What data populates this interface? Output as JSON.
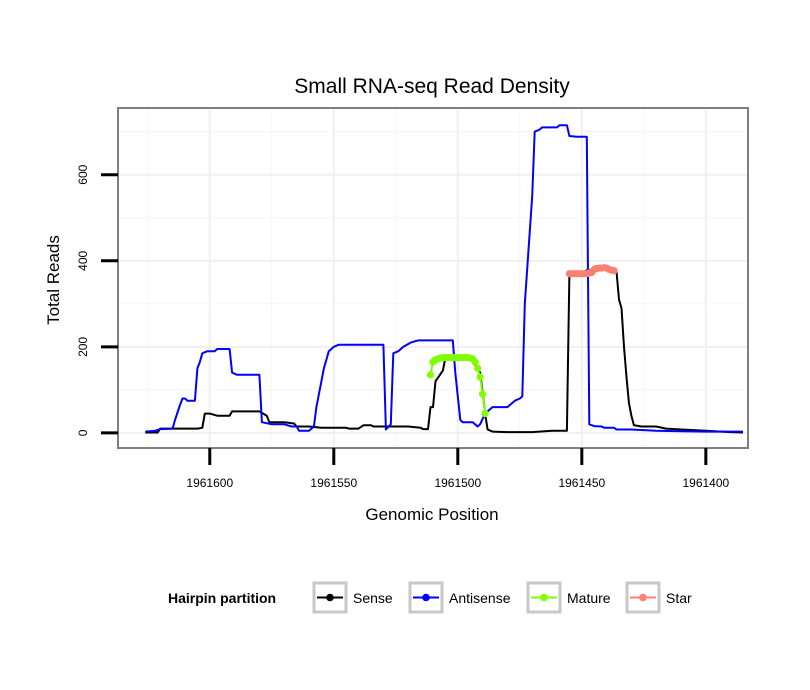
{
  "chart_data": {
    "type": "line",
    "title": "Small RNA-seq Read Density",
    "xlabel": "Genomic Position",
    "ylabel": "Total Reads",
    "x_reversed": true,
    "xlim": [
      1961637,
      1961383
    ],
    "ylim": [
      -35,
      755
    ],
    "x_ticks": [
      1961600,
      1961550,
      1961500,
      1961450,
      1961400
    ],
    "x_tick_labels": [
      "1961600",
      "1961550",
      "1961500",
      "1961450",
      "1961400"
    ],
    "y_ticks": [
      0,
      200,
      400,
      600
    ],
    "y_tick_labels": [
      "0",
      "200",
      "400",
      "600"
    ],
    "grid": true,
    "legend_position": "bottom",
    "legend_title": "Hairpin partition",
    "series": [
      {
        "name": "Sense",
        "color": "#000000",
        "points": [
          [
            1961626,
            1
          ],
          [
            1961621,
            1
          ],
          [
            1961620,
            10
          ],
          [
            1961605,
            10
          ],
          [
            1961603,
            12
          ],
          [
            1961602,
            45
          ],
          [
            1961600,
            45
          ],
          [
            1961597,
            40
          ],
          [
            1961592,
            40
          ],
          [
            1961591,
            50
          ],
          [
            1961580,
            50
          ],
          [
            1961577,
            40
          ],
          [
            1961576,
            25
          ],
          [
            1961570,
            25
          ],
          [
            1961566,
            22
          ],
          [
            1961565,
            15
          ],
          [
            1961560,
            15
          ],
          [
            1961555,
            12
          ],
          [
            1961550,
            12
          ],
          [
            1961549,
            12
          ],
          [
            1961545,
            12
          ],
          [
            1961544,
            10
          ],
          [
            1961541,
            10
          ],
          [
            1961540,
            10
          ],
          [
            1961538,
            18
          ],
          [
            1961535,
            18
          ],
          [
            1961534,
            15
          ],
          [
            1961530,
            15
          ],
          [
            1961520,
            15
          ],
          [
            1961515,
            12
          ],
          [
            1961514,
            9
          ],
          [
            1961512,
            9
          ],
          [
            1961511,
            60
          ],
          [
            1961510,
            60
          ],
          [
            1961509,
            120
          ],
          [
            1961506,
            145
          ],
          [
            1961505,
            175
          ],
          [
            1961500,
            177
          ],
          [
            1961495,
            176
          ],
          [
            1961492,
            150
          ],
          [
            1961491,
            140
          ],
          [
            1961490,
            95
          ],
          [
            1961489,
            45
          ],
          [
            1961488,
            8
          ],
          [
            1961486,
            3
          ],
          [
            1961480,
            2
          ],
          [
            1961470,
            2
          ],
          [
            1961462,
            5
          ],
          [
            1961456,
            5
          ],
          [
            1961455,
            370
          ],
          [
            1961450,
            370
          ],
          [
            1961448,
            378
          ],
          [
            1961445,
            380
          ],
          [
            1961442,
            380
          ],
          [
            1961439,
            380
          ],
          [
            1961436,
            375
          ],
          [
            1961435,
            310
          ],
          [
            1961434,
            290
          ],
          [
            1961433,
            200
          ],
          [
            1961432,
            130
          ],
          [
            1961431,
            70
          ],
          [
            1961430,
            40
          ],
          [
            1961429,
            18
          ],
          [
            1961426,
            15
          ],
          [
            1961420,
            15
          ],
          [
            1961416,
            10
          ],
          [
            1961410,
            8
          ],
          [
            1961400,
            5
          ],
          [
            1961390,
            2
          ],
          [
            1961385,
            1
          ]
        ]
      },
      {
        "name": "Antisense",
        "color": "#0000ff",
        "points": [
          [
            1961626,
            3
          ],
          [
            1961622,
            5
          ],
          [
            1961620,
            9
          ],
          [
            1961615,
            10
          ],
          [
            1961614,
            30
          ],
          [
            1961612,
            65
          ],
          [
            1961611,
            80
          ],
          [
            1961610,
            80
          ],
          [
            1961609,
            75
          ],
          [
            1961606,
            75
          ],
          [
            1961605,
            150
          ],
          [
            1961604,
            165
          ],
          [
            1961603,
            185
          ],
          [
            1961601,
            190
          ],
          [
            1961598,
            190
          ],
          [
            1961597,
            195
          ],
          [
            1961592,
            195
          ],
          [
            1961591,
            140
          ],
          [
            1961589,
            135
          ],
          [
            1961580,
            135
          ],
          [
            1961579,
            25
          ],
          [
            1961575,
            20
          ],
          [
            1961570,
            20
          ],
          [
            1961567,
            15
          ],
          [
            1961565,
            15
          ],
          [
            1961564,
            5
          ],
          [
            1961560,
            5
          ],
          [
            1961558,
            15
          ],
          [
            1961557,
            60
          ],
          [
            1961554,
            150
          ],
          [
            1961552,
            190
          ],
          [
            1961550,
            200
          ],
          [
            1961548,
            205
          ],
          [
            1961535,
            205
          ],
          [
            1961530,
            205
          ],
          [
            1961529,
            8
          ],
          [
            1961527,
            20
          ],
          [
            1961526,
            185
          ],
          [
            1961524,
            190
          ],
          [
            1961522,
            200
          ],
          [
            1961519,
            210
          ],
          [
            1961516,
            215
          ],
          [
            1961502,
            215
          ],
          [
            1961501,
            140
          ],
          [
            1961499,
            30
          ],
          [
            1961498,
            25
          ],
          [
            1961494,
            25
          ],
          [
            1961492,
            15
          ],
          [
            1961491,
            20
          ],
          [
            1961489,
            45
          ],
          [
            1961487,
            55
          ],
          [
            1961486,
            60
          ],
          [
            1961480,
            60
          ],
          [
            1961479,
            65
          ],
          [
            1961477,
            75
          ],
          [
            1961475,
            80
          ],
          [
            1961474,
            85
          ],
          [
            1961473,
            300
          ],
          [
            1961470,
            550
          ],
          [
            1961469,
            700
          ],
          [
            1961467,
            705
          ],
          [
            1961466,
            710
          ],
          [
            1961460,
            710
          ],
          [
            1961459,
            715
          ],
          [
            1961456,
            715
          ],
          [
            1961455,
            690
          ],
          [
            1961452,
            688
          ],
          [
            1961448,
            688
          ],
          [
            1961447,
            20
          ],
          [
            1961445,
            16
          ],
          [
            1961442,
            15
          ],
          [
            1961441,
            12
          ],
          [
            1961437,
            12
          ],
          [
            1961436,
            8
          ],
          [
            1961430,
            8
          ],
          [
            1961427,
            7
          ],
          [
            1961420,
            5
          ],
          [
            1961410,
            4
          ],
          [
            1961400,
            3
          ],
          [
            1961385,
            3
          ]
        ]
      },
      {
        "name": "Mature",
        "color": "#7fff00",
        "points": [
          [
            1961511,
            135
          ],
          [
            1961510,
            165
          ],
          [
            1961509,
            170
          ],
          [
            1961508,
            172
          ],
          [
            1961507,
            174
          ],
          [
            1961506,
            175
          ],
          [
            1961505,
            175
          ],
          [
            1961504,
            175
          ],
          [
            1961503,
            175
          ],
          [
            1961502,
            175
          ],
          [
            1961501,
            175
          ],
          [
            1961500,
            175
          ],
          [
            1961499,
            175
          ],
          [
            1961498,
            175
          ],
          [
            1961497,
            175
          ],
          [
            1961496,
            175
          ],
          [
            1961495,
            174
          ],
          [
            1961494,
            172
          ],
          [
            1961493,
            165
          ],
          [
            1961492,
            150
          ],
          [
            1961491,
            130
          ],
          [
            1961490,
            90
          ],
          [
            1961489,
            45
          ]
        ]
      },
      {
        "name": "Star",
        "color": "#fa8072",
        "points": [
          [
            1961455,
            370
          ],
          [
            1961454,
            370
          ],
          [
            1961453,
            370
          ],
          [
            1961452,
            370
          ],
          [
            1961451,
            370
          ],
          [
            1961450,
            370
          ],
          [
            1961449,
            370
          ],
          [
            1961448,
            370
          ],
          [
            1961447,
            372
          ],
          [
            1961446,
            373
          ],
          [
            1961445,
            380
          ],
          [
            1961444,
            382
          ],
          [
            1961443,
            383
          ],
          [
            1961442,
            383
          ],
          [
            1961441,
            384
          ],
          [
            1961440,
            383
          ],
          [
            1961439,
            380
          ],
          [
            1961438,
            378
          ],
          [
            1961437,
            377
          ]
        ]
      }
    ]
  }
}
